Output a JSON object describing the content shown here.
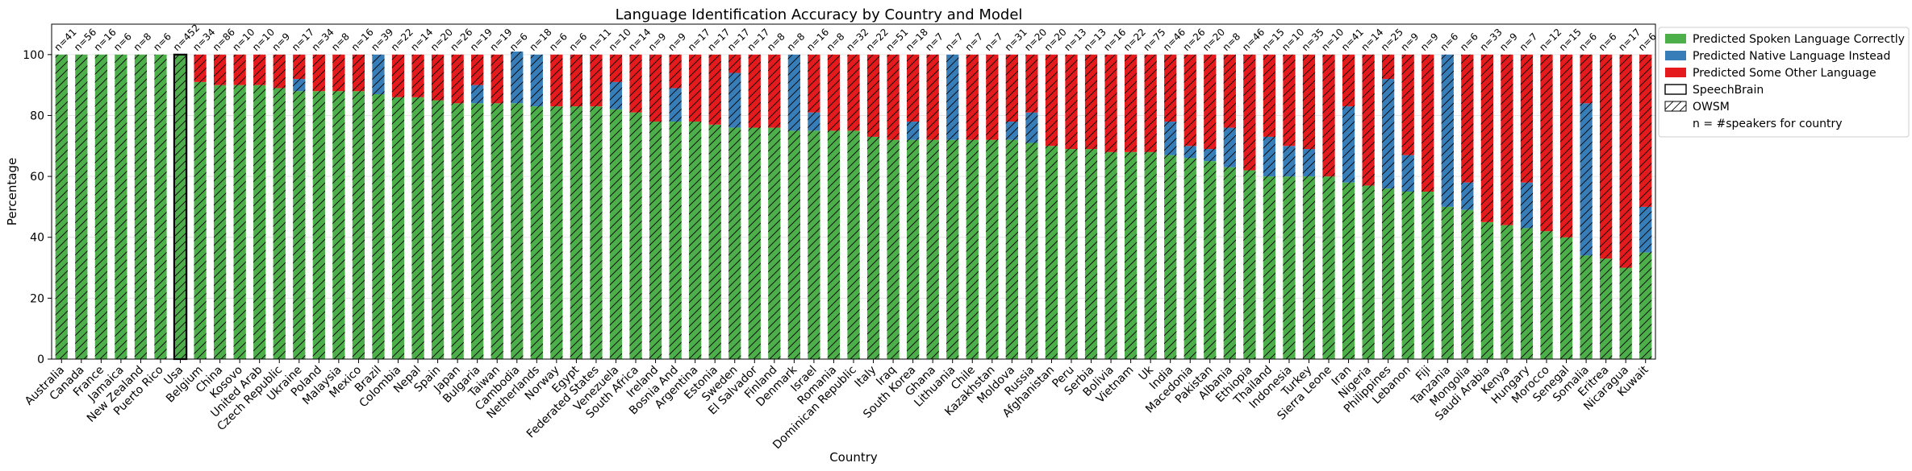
{
  "chart_data": {
    "type": "bar",
    "stacked": true,
    "title": "Language Identification Accuracy by Country and Model",
    "xlabel": "Country",
    "ylabel": "Percentage",
    "ylim": [
      0,
      110
    ],
    "yticks": [
      0,
      20,
      40,
      60,
      80,
      100
    ],
    "grid": true,
    "legend_position": "outside-top-right",
    "legend": [
      {
        "label": "Predicted Spoken Language Correctly",
        "kind": "fill",
        "color": "#4daf4a"
      },
      {
        "label": "Predicted Native Language Instead",
        "kind": "fill",
        "color": "#377eb8"
      },
      {
        "label": "Predicted Some Other Language",
        "kind": "fill",
        "color": "#e41a1c"
      },
      {
        "label": "SpeechBrain",
        "kind": "outline"
      },
      {
        "label": "OWSM",
        "kind": "hatch"
      },
      {
        "label": "n = #speakers for country",
        "kind": "text"
      }
    ],
    "colors": {
      "correct": "#4daf4a",
      "native": "#377eb8",
      "other": "#e41a1c"
    },
    "highlighted_category": "Usa",
    "categories": [
      "Australia",
      "Canada",
      "France",
      "Jamaica",
      "New Zealand",
      "Puerto Rico",
      "Usa",
      "Belgium",
      "China",
      "Kosovo",
      "United Arab",
      "Czech Republic",
      "Ukraine",
      "Poland",
      "Malaysia",
      "Mexico",
      "Brazil",
      "Colombia",
      "Nepal",
      "Spain",
      "Japan",
      "Bulgaria",
      "Taiwan",
      "Cambodia",
      "Netherlands",
      "Norway",
      "Egypt",
      "Federated States",
      "Venezuela",
      "South Africa",
      "Ireland",
      "Bosnia And",
      "Argentina",
      "Estonia",
      "Sweden",
      "El Salvador",
      "Finland",
      "Denmark",
      "Israel",
      "Romania",
      "Dominican Republic",
      "Italy",
      "Iraq",
      "South Korea",
      "Ghana",
      "Lithuania",
      "Chile",
      "Kazakhstan",
      "Moldova",
      "Russia",
      "Afghanistan",
      "Peru",
      "Serbia",
      "Bolivia",
      "Vietnam",
      "Uk",
      "India",
      "Macedonia",
      "Pakistan",
      "Albania",
      "Ethiopia",
      "Thailand",
      "Indonesia",
      "Turkey",
      "Sierra Leone",
      "Iran",
      "Nigeria",
      "Philippines",
      "Lebanon",
      "Fiji",
      "Tanzania",
      "Mongolia",
      "Saudi Arabia",
      "Kenya",
      "Hungary",
      "Morocco",
      "Senegal",
      "Somalia",
      "Eritrea",
      "Nicaragua",
      "Kuwait"
    ],
    "n_labels": [
      "n=41",
      "n=56",
      "n=16",
      "n=6",
      "n=8",
      "n=6",
      "n=452",
      "n=34",
      "n=86",
      "n=10",
      "n=10",
      "n=9",
      "n=17",
      "n=34",
      "n=8",
      "n=16",
      "n=39",
      "n=22",
      "n=14",
      "n=20",
      "n=26",
      "n=19",
      "n=19",
      "n=6",
      "n=18",
      "n=6",
      "n=6",
      "n=11",
      "n=10",
      "n=14",
      "n=9",
      "n=9",
      "n=17",
      "n=17",
      "n=17",
      "n=17",
      "n=8",
      "n=8",
      "n=16",
      "n=8",
      "n=32",
      "n=22",
      "n=51",
      "n=18",
      "n=7",
      "n=7",
      "n=7",
      "n=7",
      "n=31",
      "n=20",
      "n=20",
      "n=13",
      "n=13",
      "n=16",
      "n=22",
      "n=75",
      "n=46",
      "n=26",
      "n=20",
      "n=8",
      "n=46",
      "n=15",
      "n=10",
      "n=35",
      "n=10",
      "n=41",
      "n=14",
      "n=25",
      "n=9",
      "n=9",
      "n=6",
      "n=6",
      "n=33",
      "n=9",
      "n=7",
      "n=12",
      "n=15",
      "n=6",
      "n=6",
      "n=17",
      "n=6"
    ],
    "series": [
      {
        "name": "Predicted Spoken Language Correctly",
        "values": [
          100,
          100,
          100,
          100,
          100,
          100,
          100,
          91,
          90,
          90,
          90,
          89,
          88,
          88,
          88,
          88,
          87,
          86,
          86,
          85,
          84,
          84,
          84,
          84,
          83,
          83,
          83,
          83,
          82,
          81,
          78,
          78,
          78,
          77,
          76,
          76,
          76,
          75,
          75,
          75,
          75,
          73,
          72,
          72,
          72,
          72,
          72,
          72,
          72,
          71,
          70,
          69,
          69,
          68,
          68,
          68,
          67,
          66,
          65,
          63,
          62,
          60,
          60,
          60,
          60,
          58,
          57,
          56,
          55,
          55,
          50,
          49,
          45,
          44,
          43,
          42,
          40,
          34,
          33,
          30,
          35
        ]
      },
      {
        "name": "Predicted Native Language Instead",
        "values": [
          0,
          0,
          0,
          0,
          0,
          0,
          0,
          0,
          0,
          0,
          0,
          0,
          4,
          0,
          0,
          0,
          13,
          0,
          0,
          0,
          0,
          6,
          0,
          17,
          17,
          0,
          0,
          0,
          9,
          0,
          0,
          11,
          0,
          0,
          18,
          0,
          0,
          25,
          6,
          0,
          0,
          0,
          0,
          6,
          0,
          28,
          0,
          0,
          6,
          10,
          0,
          0,
          0,
          0,
          0,
          0,
          11,
          4,
          4,
          13,
          0,
          13,
          10,
          9,
          0,
          25,
          0,
          36,
          12,
          0,
          50,
          9,
          0,
          0,
          15,
          0,
          0,
          50,
          0,
          0,
          15
        ]
      },
      {
        "name": "Predicted Some Other Language",
        "values": [
          0,
          0,
          0,
          0,
          0,
          0,
          0,
          9,
          10,
          10,
          10,
          11,
          8,
          12,
          12,
          12,
          0,
          14,
          14,
          15,
          16,
          10,
          16,
          0,
          0,
          17,
          17,
          17,
          9,
          19,
          22,
          11,
          22,
          23,
          6,
          24,
          24,
          0,
          19,
          25,
          25,
          27,
          28,
          22,
          28,
          0,
          28,
          28,
          22,
          19,
          30,
          31,
          31,
          32,
          32,
          32,
          22,
          30,
          31,
          24,
          38,
          27,
          30,
          31,
          40,
          17,
          43,
          8,
          33,
          45,
          0,
          42,
          55,
          56,
          42,
          58,
          60,
          16,
          67,
          70,
          50
        ]
      }
    ]
  }
}
